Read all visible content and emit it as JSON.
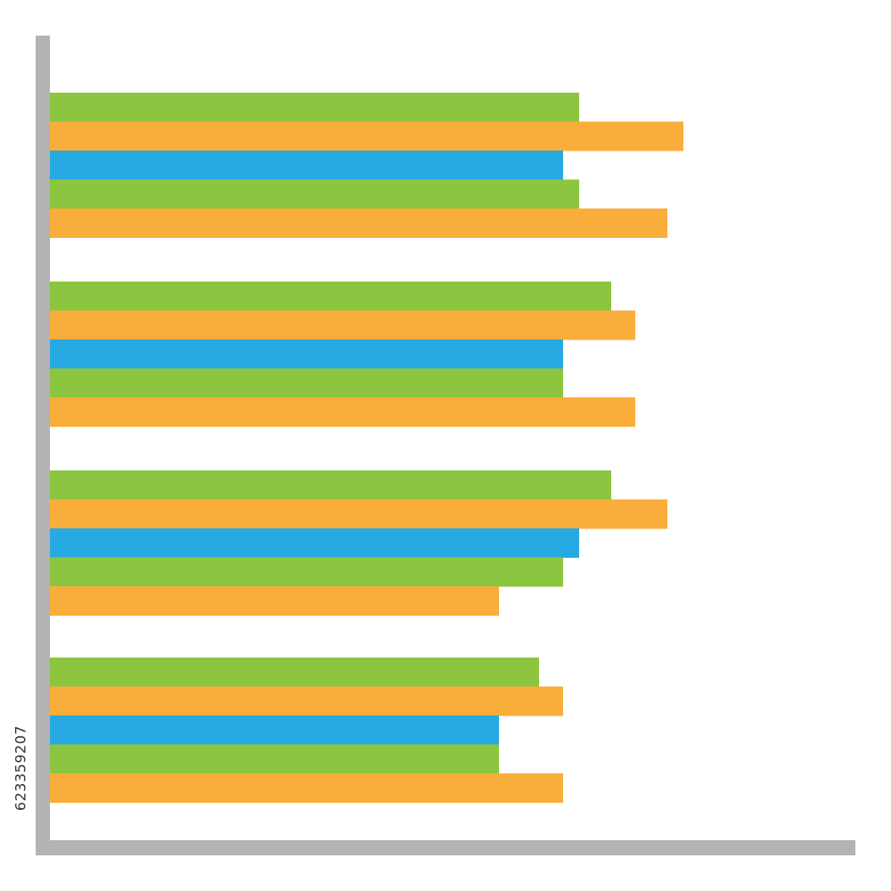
{
  "watermark": {
    "stock_id": "623359207"
  },
  "colors": {
    "axis": "#b3b3b3",
    "green": "#8cc540",
    "orange": "#f9ae3b",
    "blue": "#27a9e1",
    "background": "#ffffff"
  },
  "chart_data": {
    "type": "bar",
    "orientation": "horizontal",
    "title": "",
    "xlabel": "",
    "ylabel": "",
    "xlim": [
      0,
      100
    ],
    "grid": false,
    "legend": "none",
    "groups": [
      {
        "bars": [
          {
            "color": "green",
            "value": 66
          },
          {
            "color": "orange",
            "value": 79
          },
          {
            "color": "blue",
            "value": 64
          },
          {
            "color": "green",
            "value": 66
          },
          {
            "color": "orange",
            "value": 77
          }
        ]
      },
      {
        "bars": [
          {
            "color": "green",
            "value": 70
          },
          {
            "color": "orange",
            "value": 73
          },
          {
            "color": "blue",
            "value": 64
          },
          {
            "color": "green",
            "value": 64
          },
          {
            "color": "orange",
            "value": 73
          }
        ]
      },
      {
        "bars": [
          {
            "color": "green",
            "value": 70
          },
          {
            "color": "orange",
            "value": 77
          },
          {
            "color": "blue",
            "value": 66
          },
          {
            "color": "green",
            "value": 64
          },
          {
            "color": "orange",
            "value": 56
          }
        ]
      },
      {
        "bars": [
          {
            "color": "green",
            "value": 61
          },
          {
            "color": "orange",
            "value": 64
          },
          {
            "color": "blue",
            "value": 56
          },
          {
            "color": "green",
            "value": 56
          },
          {
            "color": "orange",
            "value": 64
          }
        ]
      }
    ]
  }
}
